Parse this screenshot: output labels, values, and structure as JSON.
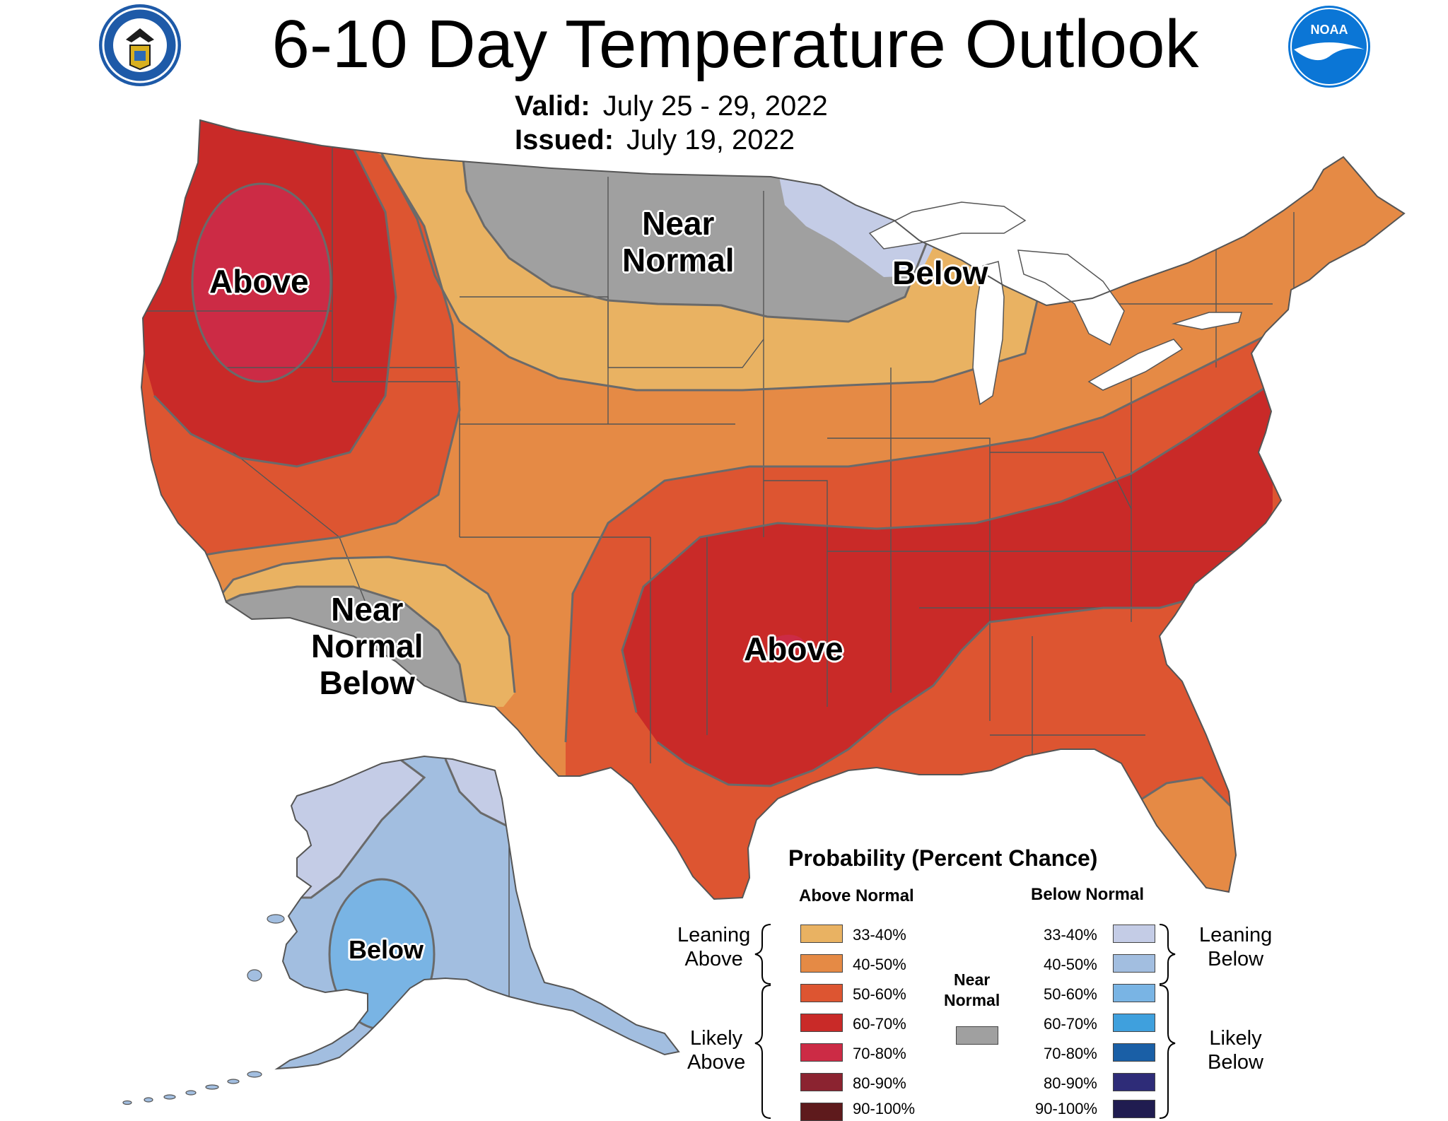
{
  "header": {
    "title": "6-10 Day Temperature Outlook",
    "valid_label": "Valid:",
    "valid_value": "July 25 - 29, 2022",
    "issued_label": "Issued:",
    "issued_value": "July 19, 2022"
  },
  "logos": {
    "commerce_seal": "department-of-commerce-seal",
    "noaa": "NOAA"
  },
  "map_labels": {
    "northwest": "Above",
    "northern_plains": [
      "Near",
      "Normal"
    ],
    "upper_midwest": "Below",
    "southwest": [
      "Near",
      "Normal",
      "Below"
    ],
    "south_central": "Above",
    "alaska": "Below"
  },
  "colors": {
    "above_33_40": "#e9b262",
    "above_40_50": "#e58a45",
    "above_50_60": "#dd5531",
    "above_60_70": "#c92a28",
    "above_70_80": "#cc2b45",
    "above_80_90": "#8b2330",
    "above_90_100": "#5e1a1c",
    "near_normal": "#a0a0a0",
    "below_33_40": "#c4cce6",
    "below_40_50": "#a2bee0",
    "below_50_60": "#79b4e4",
    "below_60_70": "#3fa0dd",
    "below_70_80": "#1a5fa6",
    "below_80_90": "#2e2c78",
    "below_90_100": "#201c50",
    "land_outline": "#555555"
  },
  "legend": {
    "title": "Probability (Percent Chance)",
    "above_header": "Above Normal",
    "below_header": "Below Normal",
    "leaning_above": [
      "Leaning",
      "Above"
    ],
    "likely_above": [
      "Likely",
      "Above"
    ],
    "near_normal": [
      "Near",
      "Normal"
    ],
    "leaning_below": [
      "Leaning",
      "Below"
    ],
    "likely_below": [
      "Likely",
      "Below"
    ],
    "above_items": [
      {
        "label": "33-40%",
        "color_key": "above_33_40"
      },
      {
        "label": "40-50%",
        "color_key": "above_40_50"
      },
      {
        "label": "50-60%",
        "color_key": "above_50_60"
      },
      {
        "label": "60-70%",
        "color_key": "above_60_70"
      },
      {
        "label": "70-80%",
        "color_key": "above_70_80"
      },
      {
        "label": "80-90%",
        "color_key": "above_80_90"
      },
      {
        "label": "90-100%",
        "color_key": "above_90_100"
      }
    ],
    "below_items": [
      {
        "label": "33-40%",
        "color_key": "below_33_40"
      },
      {
        "label": "40-50%",
        "color_key": "below_40_50"
      },
      {
        "label": "50-60%",
        "color_key": "below_50_60"
      },
      {
        "label": "60-70%",
        "color_key": "below_60_70"
      },
      {
        "label": "70-80%",
        "color_key": "below_70_80"
      },
      {
        "label": "80-90%",
        "color_key": "below_80_90"
      },
      {
        "label": "90-100%",
        "color_key": "below_90_100"
      }
    ]
  }
}
